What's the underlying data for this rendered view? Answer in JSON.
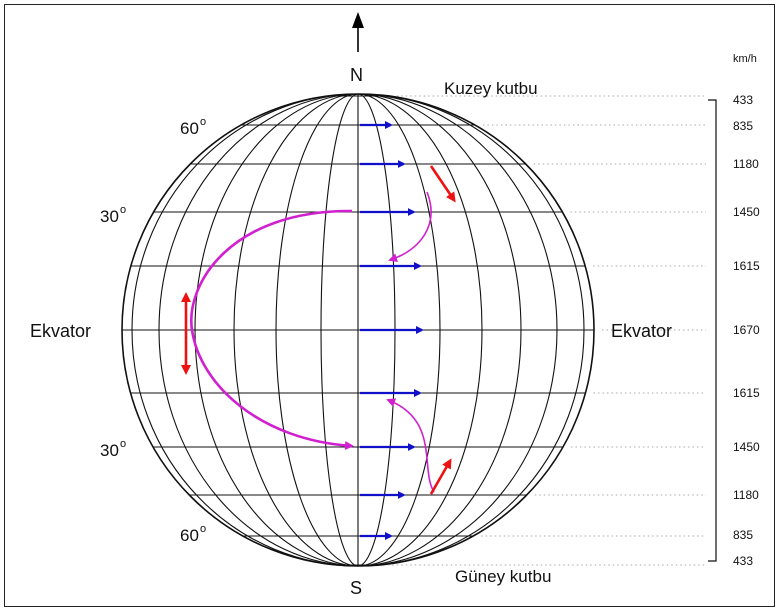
{
  "poles": {
    "north_letter": "N",
    "south_letter": "S",
    "north_name": "Kuzey kutbu",
    "south_name": "Güney kutbu"
  },
  "equator": {
    "left": "Ekvator",
    "right": "Ekvator"
  },
  "latitude_labels": {
    "n60": "60",
    "n30": "30",
    "s30": "30",
    "s60": "60",
    "degree_mark": "o"
  },
  "speed_scale": {
    "unit": "km/h",
    "values": [
      "433",
      "835",
      "1180",
      "1450",
      "1615",
      "1670",
      "1615",
      "1450",
      "1180",
      "835",
      "433"
    ]
  },
  "colors": {
    "rotation_arrow": "#1010c8",
    "deflected_path": "#d020d0",
    "deflection_arrow": "#ee1111",
    "grid": "#111111"
  }
}
